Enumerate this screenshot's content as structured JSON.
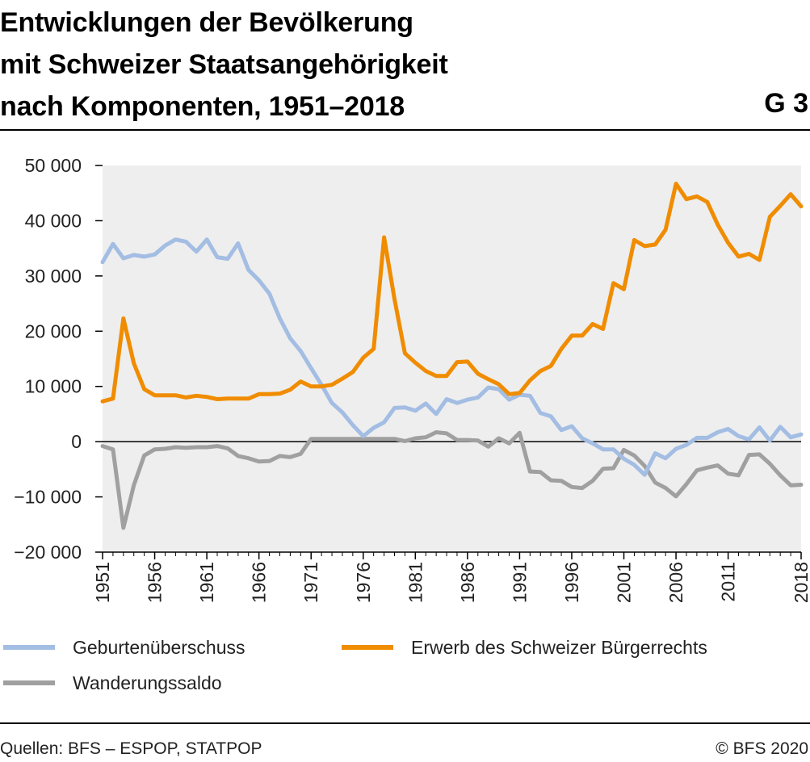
{
  "header": {
    "title_lines": [
      "Entwicklungen der Bevölkerung",
      "mit Schweizer Staatsangehörigkeit",
      "nach Komponenten, 1951–2018"
    ],
    "chart_id": "G 3"
  },
  "footer": {
    "source": "Quellen: BFS – ESPOP, STATPOP",
    "copyright": "© BFS 2020"
  },
  "colors": {
    "plot_background": "#eeeeee",
    "birth_surplus": "#a3bde3",
    "naturalisation": "#f08c00",
    "migration": "#a0a0a0"
  },
  "chart_data": {
    "type": "line",
    "title": "Entwicklungen der Bevölkerung mit Schweizer Staatsangehörigkeit nach Komponenten, 1951–2018",
    "xlabel": "",
    "ylabel": "",
    "xlim": [
      1951,
      2018
    ],
    "ylim": [
      -20000,
      50000
    ],
    "x_tick_labels": [
      "1951",
      "1956",
      "1961",
      "1966",
      "1971",
      "1976",
      "1981",
      "1986",
      "1991",
      "1996",
      "2001",
      "2006",
      "2011",
      "2018"
    ],
    "y_tick_labels": [
      "50 000",
      "40 000",
      "30 000",
      "20 000",
      "10 000",
      "0",
      "−10 000",
      "−20 000"
    ],
    "y_tick_values": [
      50000,
      40000,
      30000,
      20000,
      10000,
      0,
      -10000,
      -20000
    ],
    "grid": false,
    "legend_position": "bottom",
    "x": [
      1951,
      1952,
      1953,
      1954,
      1955,
      1956,
      1957,
      1958,
      1959,
      1960,
      1961,
      1962,
      1963,
      1964,
      1965,
      1966,
      1967,
      1968,
      1969,
      1970,
      1971,
      1972,
      1973,
      1974,
      1975,
      1976,
      1977,
      1978,
      1979,
      1980,
      1981,
      1982,
      1983,
      1984,
      1985,
      1986,
      1987,
      1988,
      1989,
      1990,
      1991,
      1992,
      1993,
      1994,
      1995,
      1996,
      1997,
      1998,
      1999,
      2000,
      2001,
      2002,
      2003,
      2004,
      2005,
      2006,
      2007,
      2008,
      2009,
      2010,
      2011,
      2012,
      2013,
      2014,
      2015,
      2016,
      2017,
      2018
    ],
    "series": [
      {
        "name": "Geburtenüberschuss",
        "color": "#a3bde3",
        "values": [
          32500,
          35800,
          33200,
          33800,
          33500,
          33900,
          35500,
          36600,
          36200,
          34400,
          36600,
          33400,
          33100,
          35900,
          31100,
          29200,
          26800,
          22300,
          18700,
          16400,
          13300,
          10300,
          7000,
          5300,
          3000,
          1000,
          2500,
          3500,
          6100,
          6200,
          5600,
          6900,
          5000,
          7700,
          7000,
          7600,
          8000,
          9800,
          9500,
          7600,
          8500,
          8300,
          5200,
          4600,
          2100,
          2800,
          600,
          -300,
          -1400,
          -1400,
          -3100,
          -4200,
          -6000,
          -2100,
          -3000,
          -1300,
          -600,
          700,
          700,
          1700,
          2300,
          1000,
          400,
          2600,
          200,
          2700,
          800,
          1300
        ]
      },
      {
        "name": "Erwerb des Schweizer Bürgerrechts",
        "color": "#f08c00",
        "values": [
          7300,
          7800,
          22300,
          14200,
          9500,
          8400,
          8400,
          8400,
          8000,
          8300,
          8100,
          7700,
          7800,
          7800,
          7800,
          8600,
          8600,
          8700,
          9400,
          10900,
          10000,
          10000,
          10300,
          11400,
          12600,
          15200,
          16800,
          37000,
          25800,
          16000,
          14300,
          12800,
          11900,
          11900,
          14400,
          14500,
          12300,
          11300,
          10400,
          8600,
          8800,
          11100,
          12800,
          13700,
          16800,
          19200,
          19200,
          21300,
          20400,
          28700,
          27600,
          36500,
          35400,
          35700,
          38400,
          46700,
          43900,
          44400,
          43400,
          39300,
          36000,
          33500,
          34000,
          32900,
          40700,
          42700,
          44800,
          42600
        ]
      },
      {
        "name": "Wanderungssaldo",
        "color": "#a0a0a0",
        "values": [
          -800,
          -1400,
          -15600,
          -7900,
          -2500,
          -1400,
          -1300,
          -1000,
          -1100,
          -1000,
          -1000,
          -800,
          -1200,
          -2600,
          -3000,
          -3600,
          -3500,
          -2600,
          -2800,
          -2200,
          500,
          500,
          500,
          500,
          500,
          500,
          500,
          500,
          500,
          100,
          600,
          800,
          1700,
          1500,
          300,
          300,
          200,
          -900,
          600,
          -300,
          1600,
          -5400,
          -5500,
          -7000,
          -7100,
          -8200,
          -8400,
          -7100,
          -4900,
          -4800,
          -1500,
          -2500,
          -4400,
          -7400,
          -8400,
          -9900,
          -7700,
          -5200,
          -4700,
          -4300,
          -5800,
          -6100,
          -2400,
          -2300,
          -4000,
          -6100,
          -7900,
          -7800
        ]
      }
    ]
  }
}
